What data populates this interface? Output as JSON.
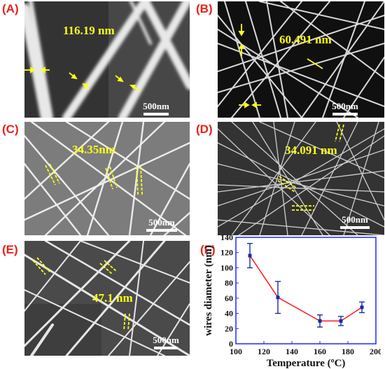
{
  "panels": [
    {
      "id": "A",
      "label": "(A)",
      "measurement": "116.19 nm",
      "scale": "500nm"
    },
    {
      "id": "B",
      "label": "(B)",
      "measurement": "60.491 nm",
      "scale": "500nm"
    },
    {
      "id": "C",
      "label": "(C)",
      "measurement": "34.35nm",
      "scale": "500nm"
    },
    {
      "id": "D",
      "label": "(D)",
      "measurement": "34.091 nm",
      "scale": "500nm"
    },
    {
      "id": "E",
      "label": "(E)",
      "measurement": "47.1 nm",
      "scale": "500nm"
    },
    {
      "id": "F",
      "label": "(F)"
    }
  ],
  "colors": {
    "panel_label": "#e8201a",
    "measurement": "#ffff1a",
    "line": "#ff1a1a",
    "marker": "#1a2aa8",
    "frame": "#1a2aff"
  },
  "chart_data": {
    "type": "line",
    "xlabel": "Temperature (ºC)",
    "ylabel": "wires diameter (nm)",
    "xlim": [
      100,
      200
    ],
    "ylim": [
      0,
      140
    ],
    "xticks": [
      100,
      120,
      140,
      160,
      180,
      200
    ],
    "yticks": [
      0,
      20,
      40,
      60,
      80,
      100,
      120,
      140
    ],
    "series": [
      {
        "x": [
          110,
          130,
          160,
          175,
          190
        ],
        "y": [
          116,
          61,
          30,
          30,
          48
        ],
        "err": [
          16,
          21,
          8,
          6,
          7
        ]
      }
    ]
  }
}
